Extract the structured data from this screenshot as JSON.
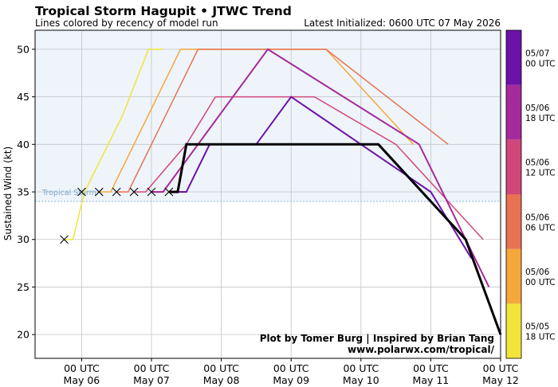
{
  "header": {
    "title": "Tropical Storm Hagupit • JTWC Trend",
    "subtitle": "Lines colored by recency of model run",
    "initialized": "Latest Initialized: 0600 UTC 07 May 2026"
  },
  "credits": {
    "line1": "Plot by Tomer Burg | Inspired by Brian Tang",
    "line2": "www.polarwx.com/tropical/"
  },
  "chart_data": {
    "type": "line",
    "ylabel": "Sustained Wind (kt)",
    "ylim": [
      17.5,
      52
    ],
    "xlim_hours": [
      -16,
      144
    ],
    "x_unit": "hours after 00 UTC 06 May 2026",
    "yticks": [
      20,
      25,
      30,
      35,
      40,
      45,
      50
    ],
    "xticks": [
      {
        "h": 0,
        "line1": "00 UTC",
        "line2": "May 06"
      },
      {
        "h": 24,
        "line1": "00 UTC",
        "line2": "May 07"
      },
      {
        "h": 48,
        "line1": "00 UTC",
        "line2": "May 08"
      },
      {
        "h": 72,
        "line1": "00 UTC",
        "line2": "May 09"
      },
      {
        "h": 96,
        "line1": "00 UTC",
        "line2": "May 10"
      },
      {
        "h": 120,
        "line1": "00 UTC",
        "line2": "May 11"
      },
      {
        "h": 144,
        "line1": "00 UTC",
        "line2": "May 12"
      }
    ],
    "grid": true,
    "tropical_storm_threshold": {
      "value": 34,
      "label": "Tropical Storm"
    },
    "past_observations": {
      "marker": "x",
      "points": [
        [
          -6,
          30
        ],
        [
          0,
          35
        ],
        [
          6,
          35
        ],
        [
          12,
          35
        ],
        [
          18,
          35
        ],
        [
          24,
          35
        ],
        [
          30,
          35
        ]
      ]
    },
    "series": [
      {
        "color": "#f2e43a",
        "width": 1.5,
        "points": [
          [
            -6,
            30
          ],
          [
            -3,
            30
          ],
          [
            1,
            35
          ],
          [
            14,
            43
          ],
          [
            23,
            50
          ],
          [
            28,
            50
          ]
        ]
      },
      {
        "color": "#f5a73a",
        "width": 1.5,
        "points": [
          [
            6,
            35
          ],
          [
            10,
            35
          ],
          [
            26,
            45
          ],
          [
            34,
            50
          ],
          [
            84,
            50
          ],
          [
            114,
            40
          ]
        ]
      },
      {
        "color": "#e87253",
        "width": 1.5,
        "points": [
          [
            12,
            35
          ],
          [
            16,
            35
          ],
          [
            24,
            40
          ],
          [
            40,
            50
          ],
          [
            74,
            50
          ],
          [
            84,
            50
          ],
          [
            126,
            40
          ]
        ]
      },
      {
        "color": "#d1477a",
        "width": 1.5,
        "points": [
          [
            18,
            35
          ],
          [
            22,
            35
          ],
          [
            36,
            40
          ],
          [
            46,
            45
          ],
          [
            64,
            45
          ],
          [
            80,
            45
          ],
          [
            108,
            40
          ],
          [
            138,
            30
          ]
        ]
      },
      {
        "color": "#a52a9c",
        "width": 2.0,
        "points": [
          [
            24,
            35
          ],
          [
            28,
            35
          ],
          [
            40,
            40
          ],
          [
            64,
            50
          ],
          [
            116,
            40
          ],
          [
            140,
            25
          ]
        ]
      },
      {
        "color": "#6c12a9",
        "width": 2.0,
        "points": [
          [
            30,
            35
          ],
          [
            36,
            35
          ],
          [
            44,
            40
          ],
          [
            60,
            40
          ],
          [
            72,
            45
          ],
          [
            120,
            35
          ],
          [
            134,
            28
          ]
        ]
      },
      {
        "color": "#000000",
        "width": 3.0,
        "points": [
          [
            30,
            35
          ],
          [
            33,
            35
          ],
          [
            36,
            40
          ],
          [
            72,
            40
          ],
          [
            102,
            40
          ],
          [
            132,
            30
          ],
          [
            144,
            20
          ]
        ]
      }
    ],
    "colorbar": {
      "colors": [
        "#f2e43a",
        "#f5a73a",
        "#e87253",
        "#d1477a",
        "#a52a9c",
        "#6c12a9"
      ],
      "labels": [
        {
          "line1": "05/05",
          "line2": "18 UTC"
        },
        {
          "line1": "05/06",
          "line2": "00 UTC"
        },
        {
          "line1": "05/06",
          "line2": "06 UTC"
        },
        {
          "line1": "05/06",
          "line2": "12 UTC"
        },
        {
          "line1": "05/06",
          "line2": "18 UTC"
        },
        {
          "line1": "05/07",
          "line2": "00 UTC"
        }
      ]
    }
  }
}
